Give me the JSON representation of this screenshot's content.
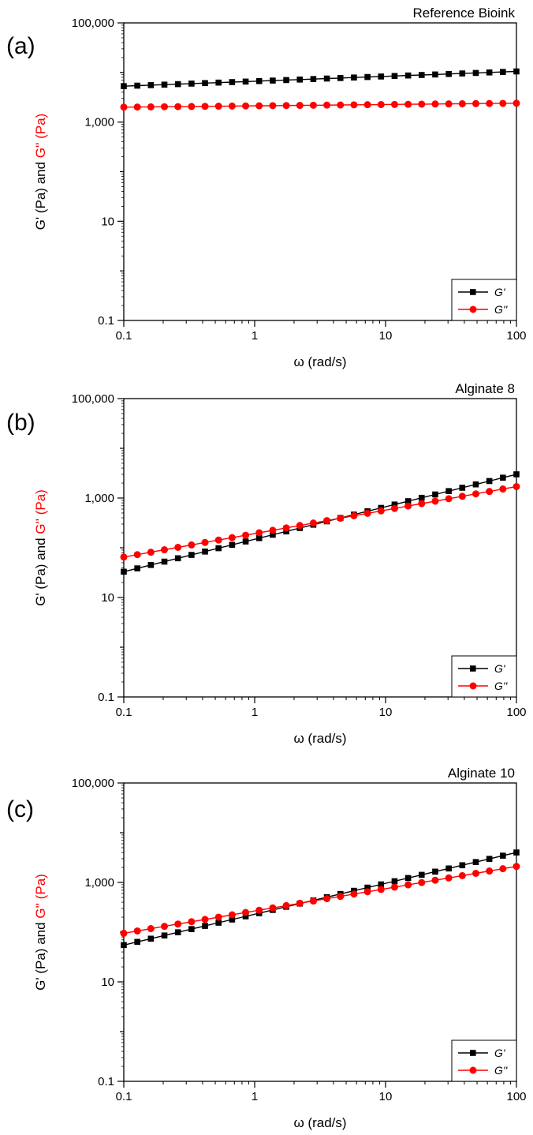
{
  "colors": {
    "g_prime": "#000000",
    "g_double_prime": "#ff0000",
    "axis": "#000000"
  },
  "chart_data": [
    {
      "panel_label": "(a)",
      "title": "Reference Bioink",
      "type": "line",
      "xlabel": "ω (rad/s)",
      "ylabel_parts": [
        {
          "text": "G' (Pa)",
          "color": "#000000"
        },
        {
          "text": " and ",
          "color": "#000000"
        },
        {
          "text": "G'' (Pa)",
          "color": "#ff0000"
        }
      ],
      "xscale": "log",
      "yscale": "log",
      "xlim": [
        0.1,
        100
      ],
      "ylim": [
        0.1,
        100000
      ],
      "xticks": [
        0.1,
        1,
        10,
        100
      ],
      "xtick_labels": [
        "0.1",
        "1",
        "10",
        "100"
      ],
      "yticks": [
        0.1,
        10,
        1000,
        100000
      ],
      "ytick_labels": [
        "0.1",
        "10",
        "1,000",
        "100,000"
      ],
      "legend_position": "bottom-right",
      "series": [
        {
          "name": "G'",
          "marker": "square",
          "color": "#000000",
          "start": [
            0.1,
            5300
          ],
          "end": [
            100,
            10500
          ],
          "points": 30
        },
        {
          "name": "G''",
          "marker": "circle",
          "color": "#ff0000",
          "start": [
            0.1,
            2000
          ],
          "end": [
            100,
            2400
          ],
          "points": 30
        }
      ]
    },
    {
      "panel_label": "(b)",
      "title": "Alginate 8",
      "type": "line",
      "xlabel": "ω (rad/s)",
      "ylabel_parts": [
        {
          "text": "G' (Pa)",
          "color": "#000000"
        },
        {
          "text": " and ",
          "color": "#000000"
        },
        {
          "text": "G'' (Pa)",
          "color": "#ff0000"
        }
      ],
      "xscale": "log",
      "yscale": "log",
      "xlim": [
        0.1,
        100
      ],
      "ylim": [
        0.1,
        100000
      ],
      "xticks": [
        0.1,
        1,
        10,
        100
      ],
      "xtick_labels": [
        "0.1",
        "1",
        "10",
        "100"
      ],
      "yticks": [
        0.1,
        10,
        1000,
        100000
      ],
      "ytick_labels": [
        "0.1",
        "10",
        "1,000",
        "100,000"
      ],
      "legend_position": "bottom-right",
      "series": [
        {
          "name": "G'",
          "marker": "square",
          "color": "#000000",
          "start": [
            0.1,
            33
          ],
          "end": [
            100,
            3000
          ],
          "points": 30
        },
        {
          "name": "G''",
          "marker": "circle",
          "color": "#ff0000",
          "start": [
            0.1,
            65
          ],
          "end": [
            100,
            1700
          ],
          "points": 30
        }
      ]
    },
    {
      "panel_label": "(c)",
      "title": "Alginate 10",
      "type": "line",
      "xlabel": "ω (rad/s)",
      "ylabel_parts": [
        {
          "text": "G' (Pa)",
          "color": "#000000"
        },
        {
          "text": " and ",
          "color": "#000000"
        },
        {
          "text": "G'' (Pa)",
          "color": "#ff0000"
        }
      ],
      "xscale": "log",
      "yscale": "log",
      "xlim": [
        0.1,
        100
      ],
      "ylim": [
        0.1,
        100000
      ],
      "xticks": [
        0.1,
        1,
        10,
        100
      ],
      "xtick_labels": [
        "0.1",
        "1",
        "10",
        "100"
      ],
      "yticks": [
        0.1,
        10,
        1000,
        100000
      ],
      "ytick_labels": [
        "0.1",
        "10",
        "1,000",
        "100,000"
      ],
      "legend_position": "bottom-right",
      "series": [
        {
          "name": "G'",
          "marker": "square",
          "color": "#000000",
          "start": [
            0.1,
            55
          ],
          "end": [
            100,
            4000
          ],
          "points": 30
        },
        {
          "name": "G''",
          "marker": "circle",
          "color": "#ff0000",
          "start": [
            0.1,
            95
          ],
          "end": [
            100,
            2100
          ],
          "points": 30
        }
      ]
    }
  ]
}
